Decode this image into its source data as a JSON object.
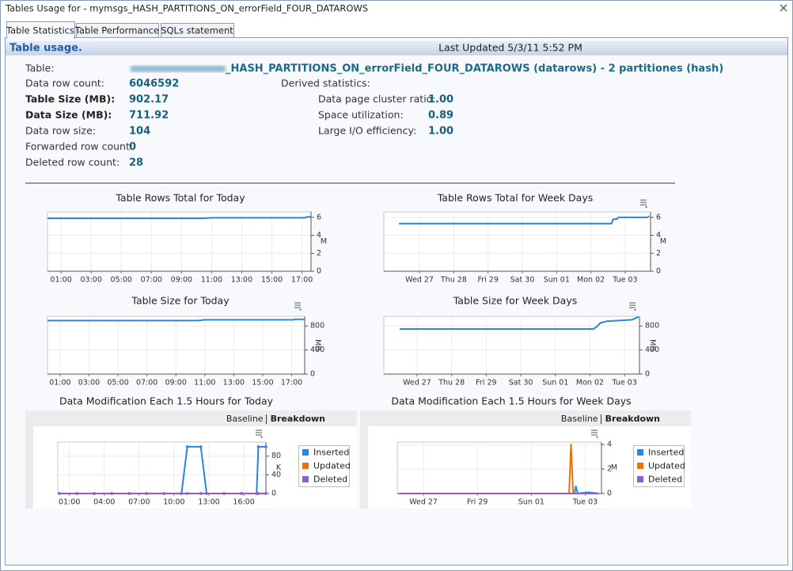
{
  "window": {
    "title": "Tables Usage for - mymsgs_HASH_PARTITIONS_ON_errorField_FOUR_DATAROWS"
  },
  "tabs": [
    "Table Statistics",
    "Table Performance",
    "SQLs statement"
  ],
  "header": {
    "title": "Table usage.",
    "updated": "Last Updated 5/3/11 5:52 PM"
  },
  "stats": {
    "table_label": "Table:",
    "table_value": "_HASH_PARTITIONS_ON_errorField_FOUR_DATAROWS (datarows) - 2 partitiones (hash)",
    "rows": [
      {
        "label": "Data row count:",
        "value": "6046592"
      },
      {
        "label": "Table Size (MB):",
        "value": "902.17"
      },
      {
        "label": "Data Size (MB):",
        "value": "711.92"
      },
      {
        "label": "Data row size:",
        "value": "104"
      },
      {
        "label": "Forwarded row count:",
        "value": "0"
      },
      {
        "label": "Deleted row count:",
        "value": "28"
      }
    ],
    "derived_title": "Derived statistics:",
    "derived": [
      {
        "label": "Data page cluster ratio:",
        "value": "1.00"
      },
      {
        "label": "Space utilization:",
        "value": "0.89"
      },
      {
        "label": "Large I/O efficiency:",
        "value": "1.00"
      }
    ]
  },
  "chart_data": [
    {
      "type": "line",
      "title": "Table Rows Total for Today",
      "ylabel": "M",
      "x": [
        0.1,
        10.5,
        11,
        17.2,
        17.3,
        17.6
      ],
      "series": [
        {
          "color": "#2a86dc",
          "values": [
            5.9,
            5.9,
            5.95,
            5.95,
            6.05,
            6.05
          ]
        }
      ],
      "xlim": [
        0.1,
        17.6
      ],
      "xticks": [
        {
          "value": 1,
          "label": "01:00"
        },
        {
          "value": 3,
          "label": "03:00"
        },
        {
          "value": 5,
          "label": "05:00"
        },
        {
          "value": 7,
          "label": "07:00"
        },
        {
          "value": 9,
          "label": "09:00"
        },
        {
          "value": 11,
          "label": "11:00"
        },
        {
          "value": 13,
          "label": "13:00"
        },
        {
          "value": 15,
          "label": "15:00"
        },
        {
          "value": 17,
          "label": "17:00"
        }
      ],
      "ylim": [
        0,
        6.6
      ],
      "yticks": [
        0,
        2,
        4,
        6
      ],
      "grid": true
    },
    {
      "type": "line",
      "title": "Table Rows Total for Week Days",
      "ylabel": "M",
      "x": [
        -0.6,
        5.6,
        5.65,
        5.75,
        5.8,
        6.65,
        6.7
      ],
      "series": [
        {
          "color": "#2a86dc",
          "values": [
            5.3,
            5.3,
            5.8,
            5.8,
            6.0,
            6.0,
            6.15
          ]
        }
      ],
      "xlim": [
        -1.04,
        6.74
      ],
      "xticks": [
        {
          "value": 0,
          "label": "Wed 27"
        },
        {
          "value": 1,
          "label": "Thu 28"
        },
        {
          "value": 2,
          "label": "Fri 29"
        },
        {
          "value": 3,
          "label": "Sat 30"
        },
        {
          "value": 4,
          "label": "Sun 01"
        },
        {
          "value": 5,
          "label": "Mon 02"
        },
        {
          "value": 6,
          "label": "Tue 03"
        }
      ],
      "ylim": [
        0,
        6.6
      ],
      "yticks": [
        0,
        2,
        4,
        6
      ],
      "grid": true
    },
    {
      "type": "line",
      "title": "Table Size for Today",
      "ylabel": "MB",
      "x": [
        0.13,
        10.5,
        11,
        17.1,
        17.2,
        17.9
      ],
      "series": [
        {
          "color": "#2a86dc",
          "values": [
            890,
            890,
            902,
            902,
            910,
            910
          ]
        }
      ],
      "xlim": [
        0.13,
        17.9
      ],
      "xticks": [
        {
          "value": 1,
          "label": "01:00"
        },
        {
          "value": 3,
          "label": "03:00"
        },
        {
          "value": 5,
          "label": "05:00"
        },
        {
          "value": 7,
          "label": "07:00"
        },
        {
          "value": 9,
          "label": "09:00"
        },
        {
          "value": 11,
          "label": "11:00"
        },
        {
          "value": 13,
          "label": "13:00"
        },
        {
          "value": 15,
          "label": "15:00"
        },
        {
          "value": 17,
          "label": "17:00"
        }
      ],
      "ylim": [
        0,
        960
      ],
      "yticks": [
        0,
        400,
        800
      ],
      "grid": true
    },
    {
      "type": "line",
      "title": "Table Size for Week Days",
      "ylabel": "MB",
      "x": [
        -0.5,
        5.1,
        5.2,
        5.3,
        5.5,
        6.2,
        6.4
      ],
      "series": [
        {
          "color": "#2a86dc",
          "values": [
            750,
            750,
            790,
            850,
            880,
            902,
            950
          ]
        }
      ],
      "xlim": [
        -0.96,
        6.43
      ],
      "xticks": [
        {
          "value": 0,
          "label": "Wed 27"
        },
        {
          "value": 1,
          "label": "Thu 28"
        },
        {
          "value": 2,
          "label": "Fri 29"
        },
        {
          "value": 3,
          "label": "Sat 30"
        },
        {
          "value": 4,
          "label": "Sun 01"
        },
        {
          "value": 5,
          "label": "Mon 02"
        },
        {
          "value": 6,
          "label": "Tue 03"
        }
      ],
      "ylim": [
        0,
        960
      ],
      "yticks": [
        0,
        400,
        800
      ],
      "grid": true
    },
    {
      "type": "line",
      "title": "Data Modification Each 1.5 Hours for Today",
      "ylabel": "K",
      "links": [
        "Baseline",
        "Breakdown"
      ],
      "legend": true,
      "markers": true,
      "x": [
        0.14,
        1.64,
        3.14,
        4.64,
        6.14,
        7.64,
        9.14,
        10.64,
        11.14,
        12.3,
        12.8,
        14.3,
        15.8,
        17.1,
        17.25,
        17.9
      ],
      "series": [
        {
          "name": "Inserted",
          "color": "#2a86dc",
          "values": [
            0,
            0,
            0,
            0,
            0,
            0,
            0,
            0,
            100,
            100,
            0,
            0,
            0,
            0,
            100,
            100
          ]
        },
        {
          "name": "Updated",
          "color": "#e8720c",
          "values": [
            0,
            0,
            0,
            0,
            0,
            0,
            0,
            0,
            0,
            0,
            0,
            0,
            0,
            0,
            0,
            0
          ]
        },
        {
          "name": "Deleted",
          "color": "#8e5bd0",
          "values": [
            0,
            0,
            0,
            0,
            0,
            0,
            0,
            0,
            0,
            0,
            0,
            0,
            0,
            0,
            0,
            0
          ]
        }
      ],
      "xlim": [
        0,
        17.9
      ],
      "xticks": [
        {
          "value": 1,
          "label": "01:00"
        },
        {
          "value": 4,
          "label": "04:00"
        },
        {
          "value": 7,
          "label": "07:00"
        },
        {
          "value": 10,
          "label": "10:00"
        },
        {
          "value": 13,
          "label": "13:00"
        },
        {
          "value": 16,
          "label": "16:00"
        }
      ],
      "ylim": [
        0,
        110
      ],
      "yticks": [
        0,
        40,
        80
      ],
      "grid": true
    },
    {
      "type": "line",
      "title": "Data Modification Each 1.5 Hours for Week Days",
      "ylabel": "M",
      "links": [
        "Baseline",
        "Breakdown"
      ],
      "legend": true,
      "markers": false,
      "x": [
        -0.9,
        0.1,
        1.1,
        2.1,
        3.1,
        4.1,
        5.1,
        5.4,
        5.47,
        5.55,
        5.6,
        5.65,
        5.72,
        6.1,
        6.5
      ],
      "series": [
        {
          "name": "Inserted",
          "color": "#2a86dc",
          "values": [
            0,
            0,
            0,
            0,
            0,
            0,
            0,
            0,
            0,
            0,
            0,
            0.6,
            0,
            0.1,
            0
          ]
        },
        {
          "name": "Updated",
          "color": "#e8720c",
          "values": [
            0,
            0,
            0,
            0,
            0,
            0,
            0,
            0,
            4,
            0,
            0,
            0,
            0,
            0,
            0
          ]
        },
        {
          "name": "Deleted",
          "color": "#8e5bd0",
          "values": [
            0,
            0,
            0,
            0,
            0,
            0,
            0,
            0,
            0,
            0,
            0,
            0,
            0,
            0,
            0
          ]
        }
      ],
      "xlim": [
        -0.97,
        6.6
      ],
      "xticks": [
        {
          "value": 0,
          "label": "Wed 27"
        },
        {
          "value": 2,
          "label": "Fri 29"
        },
        {
          "value": 4,
          "label": "Sun 01"
        },
        {
          "value": 6,
          "label": "Tue 03"
        }
      ],
      "ylim": [
        0,
        4.2
      ],
      "yticks": [
        0,
        2,
        4
      ],
      "grid": true
    }
  ]
}
